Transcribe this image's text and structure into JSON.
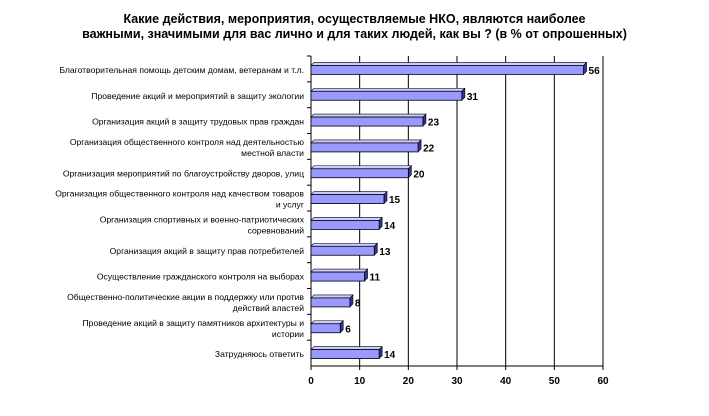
{
  "chart_data": {
    "type": "bar",
    "orientation": "horizontal",
    "title_lines": [
      "Какие действия, мероприятия, осуществляемые НКО,  являются наиболее",
      "важными, значимыми для вас лично и для таких людей, как вы ? (в %  от опрошенных)"
    ],
    "categories": [
      [
        "Благотворительная помощь детским домам, ветеранам и т.л."
      ],
      [
        "Проведение акций и мероприятий в защиту экологии"
      ],
      [
        "Организация акций в защиту трудовых прав граждан"
      ],
      [
        "Организация общественного контроля над деятельностью",
        "местной власти"
      ],
      [
        "Организация мероприятий по благоустройству дворов, улиц"
      ],
      [
        "Организация общественного контроля над качеством товаров",
        "и услуг"
      ],
      [
        "Организация спортивных и военно-патриотических",
        "соревнований"
      ],
      [
        "Организация акций в защиту прав потребителей"
      ],
      [
        "Осуществление гражданского контроля на выборах"
      ],
      [
        "Общественно-политические акции в поддержку или против",
        "действий властей"
      ],
      [
        "Проведение акций в защиту памятников архитектуры и",
        "истории"
      ],
      [
        "Затрудняюсь ответить"
      ]
    ],
    "values": [
      56,
      31,
      23,
      22,
      20,
      15,
      14,
      13,
      11,
      8,
      6,
      14
    ],
    "xlim": [
      0,
      60
    ],
    "xticks": [
      0,
      10,
      20,
      30,
      40,
      50,
      60
    ],
    "gridlines": "vertical",
    "legend": "none",
    "colors": {
      "bar_face": "#9999ff",
      "bar_shadow": "#333399",
      "bar_edge": "#000000",
      "grid": "#000000",
      "text": "#000000"
    }
  }
}
